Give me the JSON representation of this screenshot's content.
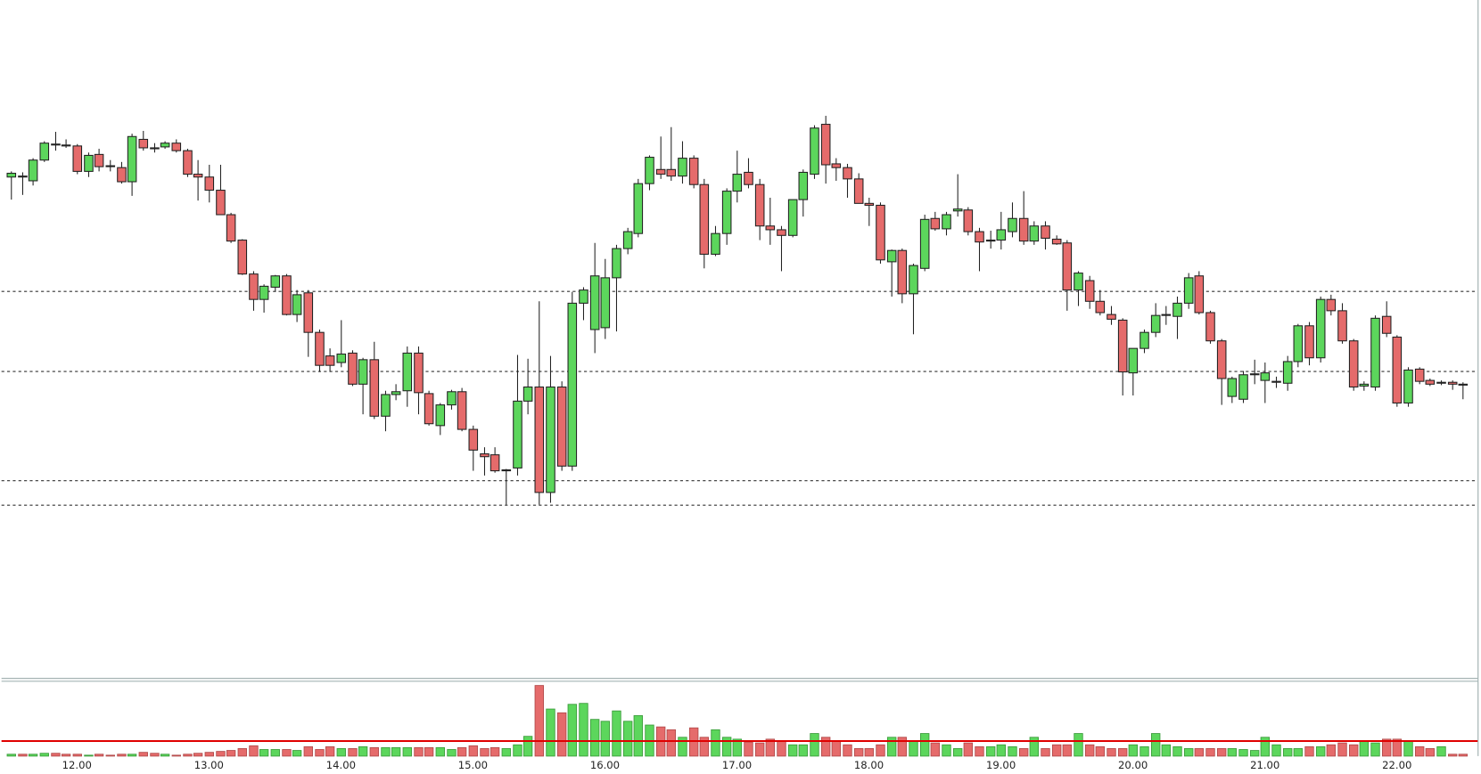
{
  "chart_data": {
    "type": "candlestick",
    "categories": [
      null,
      null,
      null,
      null,
      null,
      null,
      "12.00",
      null,
      null,
      null,
      null,
      null,
      null,
      null,
      null,
      null,
      null,
      null,
      "13.00",
      null,
      null,
      null,
      null,
      null,
      null,
      null,
      null,
      null,
      null,
      null,
      "14.00",
      null,
      null,
      null,
      null,
      null,
      null,
      null,
      null,
      null,
      null,
      null,
      "15.00",
      null,
      null,
      null,
      null,
      null,
      null,
      null,
      null,
      null,
      null,
      null,
      "16.00",
      null,
      null,
      null,
      null,
      null,
      null,
      null,
      null,
      null,
      null,
      null,
      "17.00",
      null,
      null,
      null,
      null,
      null,
      null,
      null,
      null,
      null,
      null,
      null,
      "18.00",
      null,
      null,
      null,
      null,
      null,
      null,
      null,
      null,
      null,
      null,
      null,
      "19.00",
      null,
      null,
      null,
      null,
      null,
      null,
      null,
      null,
      null,
      null,
      null,
      "20.00",
      null,
      null,
      null,
      null,
      null,
      null,
      null,
      null,
      null,
      null,
      null,
      "21.00",
      null,
      null,
      null,
      null,
      null,
      null,
      null,
      null,
      null,
      null,
      null,
      "22.00",
      null,
      null,
      null,
      null,
      null,
      null
    ],
    "open": [
      532,
      533,
      528,
      550,
      567,
      566,
      565,
      538,
      556,
      544,
      542,
      527,
      572,
      563,
      564,
      568,
      560,
      535,
      532,
      518,
      492,
      465,
      429,
      402,
      415,
      427,
      386,
      409,
      367,
      342,
      335,
      345,
      312,
      338,
      278,
      301,
      305,
      345,
      302,
      268,
      290,
      304,
      264,
      238,
      237,
      221,
      223,
      294,
      309,
      197,
      309,
      225,
      398,
      370,
      372,
      425,
      456,
      472,
      525,
      540,
      540,
      533,
      552,
      524,
      450,
      472,
      517,
      537,
      524,
      480,
      476,
      470,
      508,
      535,
      588,
      546,
      542,
      530,
      504,
      502,
      442,
      454,
      408,
      435,
      488,
      477,
      496,
      497,
      474,
      465,
      465,
      474,
      488,
      464,
      480,
      466,
      462,
      412,
      422,
      400,
      386,
      380,
      324,
      350,
      367,
      385,
      384,
      398,
      427,
      388,
      358,
      299,
      296,
      322,
      316,
      314,
      313,
      336,
      374,
      340,
      402,
      390,
      358,
      310,
      309,
      384,
      362,
      292,
      328,
      316,
      313,
      314,
      312
    ],
    "high": [
      538,
      537,
      552,
      570,
      580,
      572,
      567,
      558,
      562,
      550,
      548,
      578,
      581,
      568,
      570,
      572,
      562,
      550,
      545,
      545,
      494,
      466,
      432,
      418,
      428,
      429,
      412,
      412,
      370,
      350,
      380,
      348,
      340,
      357,
      305,
      312,
      352,
      352,
      305,
      292,
      306,
      308,
      268,
      245,
      245,
      222,
      343,
      339,
      400,
      342,
      315,
      410,
      415,
      462,
      445,
      460,
      478,
      530,
      555,
      575,
      585,
      570,
      555,
      530,
      480,
      520,
      560,
      552,
      530,
      510,
      480,
      508,
      540,
      587,
      597,
      552,
      546,
      536,
      510,
      505,
      455,
      456,
      440,
      492,
      495,
      495,
      535,
      500,
      478,
      475,
      495,
      505,
      517,
      485,
      485,
      470,
      465,
      432,
      427,
      412,
      395,
      382,
      350,
      370,
      398,
      395,
      405,
      430,
      432,
      390,
      360,
      320,
      326,
      338,
      335,
      320,
      342,
      376,
      378,
      405,
      407,
      398,
      360,
      315,
      385,
      400,
      364,
      330,
      330,
      318,
      316,
      316,
      314
    ],
    "low": [
      508,
      513,
      523,
      548,
      560,
      563,
      535,
      532,
      538,
      538,
      525,
      512,
      560,
      558,
      562,
      558,
      532,
      507,
      505,
      492,
      462,
      428,
      390,
      388,
      410,
      385,
      378,
      341,
      325,
      325,
      330,
      310,
      280,
      275,
      262,
      295,
      288,
      280,
      268,
      258,
      285,
      262,
      220,
      215,
      218,
      184,
      215,
      280,
      184,
      186,
      220,
      220,
      380,
      345,
      360,
      368,
      450,
      468,
      518,
      530,
      528,
      525,
      520,
      435,
      448,
      460,
      505,
      520,
      465,
      460,
      432,
      468,
      490,
      530,
      525,
      528,
      510,
      505,
      480,
      440,
      405,
      398,
      365,
      432,
      475,
      470,
      490,
      470,
      432,
      456,
      455,
      468,
      460,
      460,
      455,
      460,
      390,
      395,
      392,
      385,
      375,
      300,
      300,
      345,
      362,
      375,
      360,
      392,
      386,
      355,
      290,
      292,
      292,
      312,
      292,
      308,
      305,
      330,
      332,
      335,
      385,
      355,
      305,
      305,
      305,
      362,
      288,
      288,
      312,
      310,
      311,
      306,
      296
    ],
    "close": [
      536,
      532,
      550,
      568,
      566,
      565,
      538,
      555,
      543,
      543,
      527,
      575,
      563,
      562,
      568,
      560,
      535,
      532,
      518,
      492,
      464,
      429,
      402,
      416,
      427,
      386,
      407,
      367,
      332,
      332,
      344,
      312,
      338,
      278,
      301,
      304,
      345,
      303,
      270,
      290,
      304,
      264,
      242,
      235,
      220,
      221,
      294,
      309,
      197,
      309,
      225,
      398,
      412,
      427,
      425,
      456,
      474,
      525,
      553,
      535,
      533,
      552,
      524,
      450,
      472,
      517,
      535,
      524,
      480,
      476,
      470,
      508,
      537,
      584,
      545,
      542,
      530,
      504,
      502,
      444,
      454,
      408,
      438,
      487,
      477,
      492,
      498,
      474,
      463,
      465,
      476,
      488,
      464,
      480,
      467,
      461,
      412,
      430,
      400,
      388,
      381,
      325,
      350,
      367,
      385,
      386,
      398,
      425,
      388,
      358,
      318,
      318,
      322,
      323,
      324,
      315,
      336,
      374,
      340,
      402,
      390,
      358,
      309,
      312,
      382,
      366,
      292,
      327,
      315,
      312,
      314,
      312,
      311
    ],
    "volume": [
      2,
      2,
      2,
      3,
      3,
      2,
      2,
      1,
      2,
      1,
      2,
      2,
      4,
      3,
      2,
      1,
      2,
      3,
      4,
      5,
      6,
      8,
      11,
      7,
      7,
      7,
      6,
      10,
      7,
      10,
      8,
      8,
      10,
      9,
      9,
      9,
      9,
      9,
      9,
      9,
      7,
      9,
      11,
      8,
      9,
      8,
      12,
      21,
      75,
      50,
      46,
      55,
      56,
      39,
      37,
      48,
      37,
      43,
      33,
      31,
      28,
      20,
      30,
      20,
      28,
      20,
      18,
      15,
      14,
      18,
      16,
      12,
      12,
      24,
      20,
      16,
      12,
      8,
      8,
      12,
      20,
      20,
      16,
      24,
      14,
      12,
      8,
      14,
      10,
      10,
      12,
      10,
      8,
      20,
      8,
      12,
      12,
      24,
      12,
      10,
      8,
      8,
      12,
      10,
      24,
      12,
      10,
      8,
      8,
      8,
      8,
      8,
      7,
      6,
      20,
      12,
      8,
      8,
      10,
      10,
      12,
      14,
      12,
      16,
      14,
      18,
      18,
      16,
      10,
      8,
      10,
      2,
      2
    ],
    "ylim": [
      0,
      720
    ],
    "volume_ylim": [
      0,
      80
    ],
    "levels": [
      411,
      326,
      210,
      184
    ],
    "volume_average": 16,
    "volume_average_color": "#e00000",
    "up_color": "#5cd65c",
    "down_color": "#e56b6b"
  }
}
